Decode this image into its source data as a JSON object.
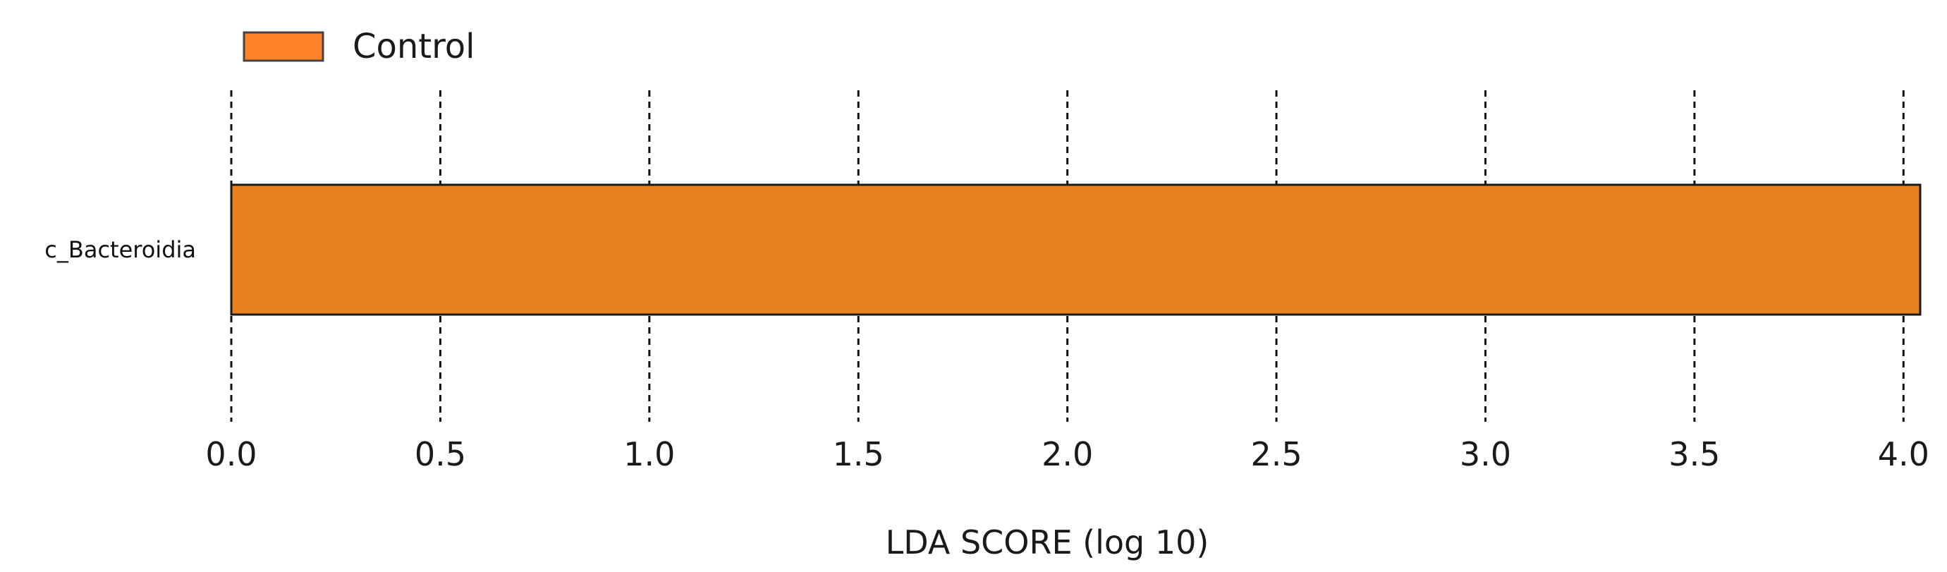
{
  "chart_data": {
    "type": "bar",
    "orientation": "horizontal",
    "categories": [
      "c_Bacteroidia"
    ],
    "series": [
      {
        "name": "Control",
        "values": [
          4.04
        ],
        "color": "#E8801F"
      }
    ],
    "legend": {
      "entries": [
        "Control"
      ],
      "legend_color": "#FF8128",
      "position": "top-left"
    },
    "xlabel": "LDA SCORE (log 10)",
    "ylabel": "",
    "xlim": [
      0,
      4.04
    ],
    "xticks": [
      0.0,
      0.5,
      1.0,
      1.5,
      2.0,
      2.5,
      3.0,
      3.5,
      4.0
    ],
    "xtick_labels": [
      "0.0",
      "0.5",
      "1.0",
      "1.5",
      "2.0",
      "2.5",
      "3.0",
      "3.5",
      "4.0"
    ],
    "grid": "vertical dashed lines at each x tick",
    "title": ""
  }
}
